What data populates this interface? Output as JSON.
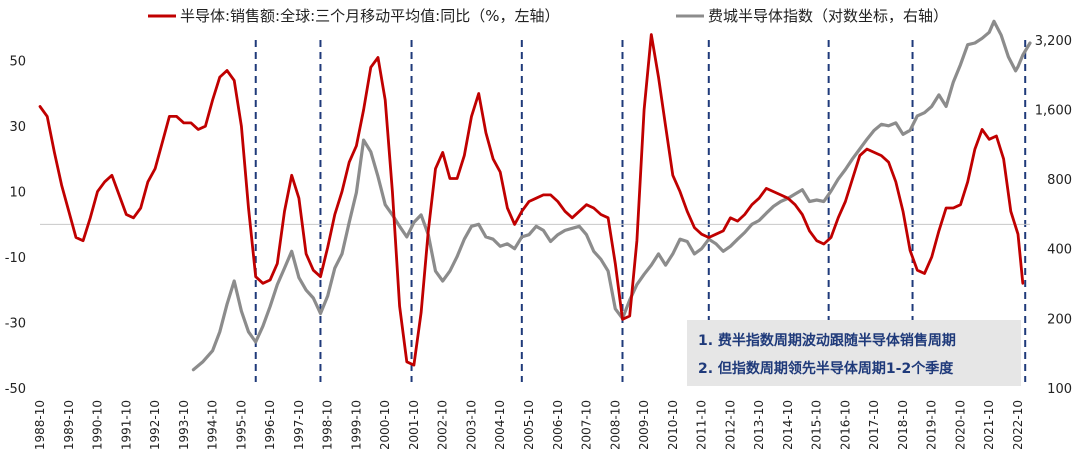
{
  "chart_data": {
    "type": "line",
    "title": "",
    "xlabel": "",
    "ylabel_left": "",
    "ylabel_right": "",
    "left_axis": {
      "ylim": [
        -50,
        60
      ],
      "ticks": [
        50,
        30,
        10,
        -10,
        -30,
        -50
      ],
      "tick_labels": [
        "50",
        "30",
        "10",
        "-10",
        "-30",
        "-50"
      ]
    },
    "right_axis": {
      "scale": "log",
      "ylim": [
        100,
        3600
      ],
      "ticks": [
        3200,
        1600,
        800,
        400,
        200,
        100
      ],
      "tick_labels": [
        "3,200",
        "1,600",
        "800",
        "400",
        "200",
        "100"
      ]
    },
    "x_range": [
      "1988-10",
      "2023-03"
    ],
    "x_ticks": [
      "1988-10",
      "1989-10",
      "1990-10",
      "1991-10",
      "1992-10",
      "1993-10",
      "1994-10",
      "1995-10",
      "1996-10",
      "1997-10",
      "1998-10",
      "1999-10",
      "2000-10",
      "2001-10",
      "2002-10",
      "2003-10",
      "2004-10",
      "2005-10",
      "2006-10",
      "2007-10",
      "2008-10",
      "2009-10",
      "2010-10",
      "2011-10",
      "2012-10",
      "2013-10",
      "2014-10",
      "2015-10",
      "2016-10",
      "2017-10",
      "2018-10",
      "2019-10",
      "2020-10",
      "2021-10",
      "2022-10"
    ],
    "grid": false,
    "legend_placement": "top",
    "cycle_lines": [
      "1996-04",
      "1998-07",
      "2001-09",
      "2005-07",
      "2009-01",
      "2012-01",
      "2016-03",
      "2019-02",
      "2023-01"
    ],
    "series": [
      {
        "name": "半导体:销售额:全球:三个月移动平均值:同比（%，左轴）",
        "axis": "left",
        "color": "#c00000",
        "points": [
          [
            "1988-10",
            36
          ],
          [
            "1989-01",
            33
          ],
          [
            "1989-04",
            22
          ],
          [
            "1989-07",
            12
          ],
          [
            "1989-10",
            4
          ],
          [
            "1990-01",
            -4
          ],
          [
            "1990-04",
            -5
          ],
          [
            "1990-07",
            2
          ],
          [
            "1990-10",
            10
          ],
          [
            "1991-01",
            13
          ],
          [
            "1991-04",
            15
          ],
          [
            "1991-07",
            9
          ],
          [
            "1991-10",
            3
          ],
          [
            "1992-01",
            2
          ],
          [
            "1992-04",
            5
          ],
          [
            "1992-07",
            13
          ],
          [
            "1992-10",
            17
          ],
          [
            "1993-01",
            25
          ],
          [
            "1993-04",
            33
          ],
          [
            "1993-07",
            33
          ],
          [
            "1993-10",
            31
          ],
          [
            "1994-01",
            31
          ],
          [
            "1994-04",
            29
          ],
          [
            "1994-07",
            30
          ],
          [
            "1994-10",
            38
          ],
          [
            "1995-01",
            45
          ],
          [
            "1995-04",
            47
          ],
          [
            "1995-07",
            44
          ],
          [
            "1995-10",
            30
          ],
          [
            "1996-01",
            5
          ],
          [
            "1996-04",
            -16
          ],
          [
            "1996-07",
            -18
          ],
          [
            "1996-10",
            -17
          ],
          [
            "1997-01",
            -12
          ],
          [
            "1997-04",
            4
          ],
          [
            "1997-07",
            15
          ],
          [
            "1997-10",
            8
          ],
          [
            "1998-01",
            -9
          ],
          [
            "1998-04",
            -14
          ],
          [
            "1998-07",
            -16
          ],
          [
            "1998-10",
            -7
          ],
          [
            "1999-01",
            3
          ],
          [
            "1999-04",
            10
          ],
          [
            "1999-07",
            19
          ],
          [
            "1999-10",
            24
          ],
          [
            "2000-01",
            35
          ],
          [
            "2000-04",
            48
          ],
          [
            "2000-07",
            51
          ],
          [
            "2000-10",
            38
          ],
          [
            "2001-01",
            10
          ],
          [
            "2001-04",
            -25
          ],
          [
            "2001-07",
            -42
          ],
          [
            "2001-10",
            -43
          ],
          [
            "2002-01",
            -27
          ],
          [
            "2002-04",
            -2
          ],
          [
            "2002-07",
            17
          ],
          [
            "2002-10",
            22
          ],
          [
            "2003-01",
            14
          ],
          [
            "2003-04",
            14
          ],
          [
            "2003-07",
            21
          ],
          [
            "2003-10",
            33
          ],
          [
            "2004-01",
            40
          ],
          [
            "2004-04",
            28
          ],
          [
            "2004-07",
            20
          ],
          [
            "2004-10",
            16
          ],
          [
            "2005-01",
            5
          ],
          [
            "2005-04",
            0
          ],
          [
            "2005-07",
            4
          ],
          [
            "2005-10",
            7
          ],
          [
            "2006-01",
            8
          ],
          [
            "2006-04",
            9
          ],
          [
            "2006-07",
            9
          ],
          [
            "2006-10",
            7
          ],
          [
            "2007-01",
            4
          ],
          [
            "2007-04",
            2
          ],
          [
            "2007-07",
            4
          ],
          [
            "2007-10",
            6
          ],
          [
            "2008-01",
            5
          ],
          [
            "2008-04",
            3
          ],
          [
            "2008-07",
            2
          ],
          [
            "2008-10",
            -12
          ],
          [
            "2009-01",
            -29
          ],
          [
            "2009-04",
            -28
          ],
          [
            "2009-07",
            -5
          ],
          [
            "2009-10",
            35
          ],
          [
            "2010-01",
            58
          ],
          [
            "2010-04",
            45
          ],
          [
            "2010-07",
            30
          ],
          [
            "2010-10",
            15
          ],
          [
            "2011-01",
            10
          ],
          [
            "2011-04",
            4
          ],
          [
            "2011-07",
            -1
          ],
          [
            "2011-10",
            -3
          ],
          [
            "2012-01",
            -4
          ],
          [
            "2012-04",
            -3
          ],
          [
            "2012-07",
            -2
          ],
          [
            "2012-10",
            2
          ],
          [
            "2013-01",
            1
          ],
          [
            "2013-04",
            3
          ],
          [
            "2013-07",
            6
          ],
          [
            "2013-10",
            8
          ],
          [
            "2014-01",
            11
          ],
          [
            "2014-04",
            10
          ],
          [
            "2014-07",
            9
          ],
          [
            "2014-10",
            8
          ],
          [
            "2015-01",
            6
          ],
          [
            "2015-04",
            3
          ],
          [
            "2015-07",
            -2
          ],
          [
            "2015-10",
            -5
          ],
          [
            "2016-01",
            -6
          ],
          [
            "2016-04",
            -4
          ],
          [
            "2016-07",
            2
          ],
          [
            "2016-10",
            7
          ],
          [
            "2017-01",
            14
          ],
          [
            "2017-04",
            21
          ],
          [
            "2017-07",
            23
          ],
          [
            "2017-10",
            22
          ],
          [
            "2018-01",
            21
          ],
          [
            "2018-04",
            19
          ],
          [
            "2018-07",
            13
          ],
          [
            "2018-10",
            4
          ],
          [
            "2019-01",
            -8
          ],
          [
            "2019-04",
            -14
          ],
          [
            "2019-07",
            -15
          ],
          [
            "2019-10",
            -10
          ],
          [
            "2020-01",
            -2
          ],
          [
            "2020-04",
            5
          ],
          [
            "2020-07",
            5
          ],
          [
            "2020-10",
            6
          ],
          [
            "2021-01",
            13
          ],
          [
            "2021-04",
            23
          ],
          [
            "2021-07",
            29
          ],
          [
            "2021-10",
            26
          ],
          [
            "2022-01",
            27
          ],
          [
            "2022-04",
            20
          ],
          [
            "2022-07",
            4
          ],
          [
            "2022-10",
            -3
          ],
          [
            "2022-12",
            -18
          ]
        ]
      },
      {
        "name": "费城半导体指数（对数坐标，右轴）",
        "axis": "right",
        "color": "#8c8c8c",
        "points": [
          [
            "1994-02",
            120
          ],
          [
            "1994-06",
            130
          ],
          [
            "1994-10",
            145
          ],
          [
            "1995-01",
            175
          ],
          [
            "1995-04",
            230
          ],
          [
            "1995-07",
            290
          ],
          [
            "1995-10",
            215
          ],
          [
            "1996-01",
            175
          ],
          [
            "1996-04",
            158
          ],
          [
            "1996-07",
            185
          ],
          [
            "1996-10",
            225
          ],
          [
            "1997-01",
            280
          ],
          [
            "1997-04",
            330
          ],
          [
            "1997-07",
            390
          ],
          [
            "1997-10",
            300
          ],
          [
            "1998-01",
            265
          ],
          [
            "1998-04",
            245
          ],
          [
            "1998-07",
            210
          ],
          [
            "1998-10",
            250
          ],
          [
            "1999-01",
            330
          ],
          [
            "1999-04",
            380
          ],
          [
            "1999-07",
            520
          ],
          [
            "1999-10",
            700
          ],
          [
            "2000-01",
            1180
          ],
          [
            "2000-04",
            1050
          ],
          [
            "2000-07",
            820
          ],
          [
            "2000-10",
            620
          ],
          [
            "2001-01",
            560
          ],
          [
            "2001-04",
            500
          ],
          [
            "2001-07",
            450
          ],
          [
            "2001-10",
            520
          ],
          [
            "2002-01",
            560
          ],
          [
            "2002-04",
            460
          ],
          [
            "2002-07",
            320
          ],
          [
            "2002-10",
            290
          ],
          [
            "2003-01",
            320
          ],
          [
            "2003-04",
            370
          ],
          [
            "2003-07",
            440
          ],
          [
            "2003-10",
            500
          ],
          [
            "2004-01",
            510
          ],
          [
            "2004-04",
            450
          ],
          [
            "2004-07",
            440
          ],
          [
            "2004-10",
            410
          ],
          [
            "2005-01",
            420
          ],
          [
            "2005-04",
            400
          ],
          [
            "2005-07",
            450
          ],
          [
            "2005-10",
            460
          ],
          [
            "2006-01",
            500
          ],
          [
            "2006-04",
            480
          ],
          [
            "2006-07",
            430
          ],
          [
            "2006-10",
            460
          ],
          [
            "2007-01",
            480
          ],
          [
            "2007-04",
            490
          ],
          [
            "2007-07",
            500
          ],
          [
            "2007-10",
            460
          ],
          [
            "2008-01",
            390
          ],
          [
            "2008-04",
            360
          ],
          [
            "2008-07",
            320
          ],
          [
            "2008-10",
            220
          ],
          [
            "2009-01",
            200
          ],
          [
            "2009-04",
            240
          ],
          [
            "2009-07",
            280
          ],
          [
            "2009-10",
            310
          ],
          [
            "2010-01",
            340
          ],
          [
            "2010-04",
            380
          ],
          [
            "2010-07",
            340
          ],
          [
            "2010-10",
            380
          ],
          [
            "2011-01",
            440
          ],
          [
            "2011-04",
            430
          ],
          [
            "2011-07",
            380
          ],
          [
            "2011-10",
            400
          ],
          [
            "2012-01",
            440
          ],
          [
            "2012-04",
            420
          ],
          [
            "2012-07",
            390
          ],
          [
            "2012-10",
            410
          ],
          [
            "2013-01",
            440
          ],
          [
            "2013-04",
            470
          ],
          [
            "2013-07",
            510
          ],
          [
            "2013-10",
            530
          ],
          [
            "2014-01",
            570
          ],
          [
            "2014-04",
            610
          ],
          [
            "2014-07",
            640
          ],
          [
            "2014-10",
            660
          ],
          [
            "2015-01",
            690
          ],
          [
            "2015-04",
            720
          ],
          [
            "2015-07",
            640
          ],
          [
            "2015-10",
            650
          ],
          [
            "2016-01",
            640
          ],
          [
            "2016-04",
            710
          ],
          [
            "2016-07",
            800
          ],
          [
            "2016-10",
            880
          ],
          [
            "2017-01",
            980
          ],
          [
            "2017-04",
            1080
          ],
          [
            "2017-07",
            1190
          ],
          [
            "2017-10",
            1300
          ],
          [
            "2018-01",
            1380
          ],
          [
            "2018-04",
            1360
          ],
          [
            "2018-07",
            1400
          ],
          [
            "2018-10",
            1250
          ],
          [
            "2019-01",
            1300
          ],
          [
            "2019-04",
            1500
          ],
          [
            "2019-07",
            1550
          ],
          [
            "2019-10",
            1650
          ],
          [
            "2020-01",
            1850
          ],
          [
            "2020-04",
            1650
          ],
          [
            "2020-07",
            2100
          ],
          [
            "2020-10",
            2500
          ],
          [
            "2021-01",
            3050
          ],
          [
            "2021-04",
            3100
          ],
          [
            "2021-07",
            3250
          ],
          [
            "2021-10",
            3450
          ],
          [
            "2021-12",
            3850
          ],
          [
            "2022-03",
            3350
          ],
          [
            "2022-06",
            2700
          ],
          [
            "2022-09",
            2350
          ],
          [
            "2022-10",
            2450
          ],
          [
            "2022-12",
            2750
          ],
          [
            "2023-03",
            3100
          ]
        ]
      }
    ],
    "annotations": [
      "1. 费半指数周期波动跟随半导体销售周期",
      "2. 但指数周期领先半导体周期1-2个季度"
    ]
  }
}
